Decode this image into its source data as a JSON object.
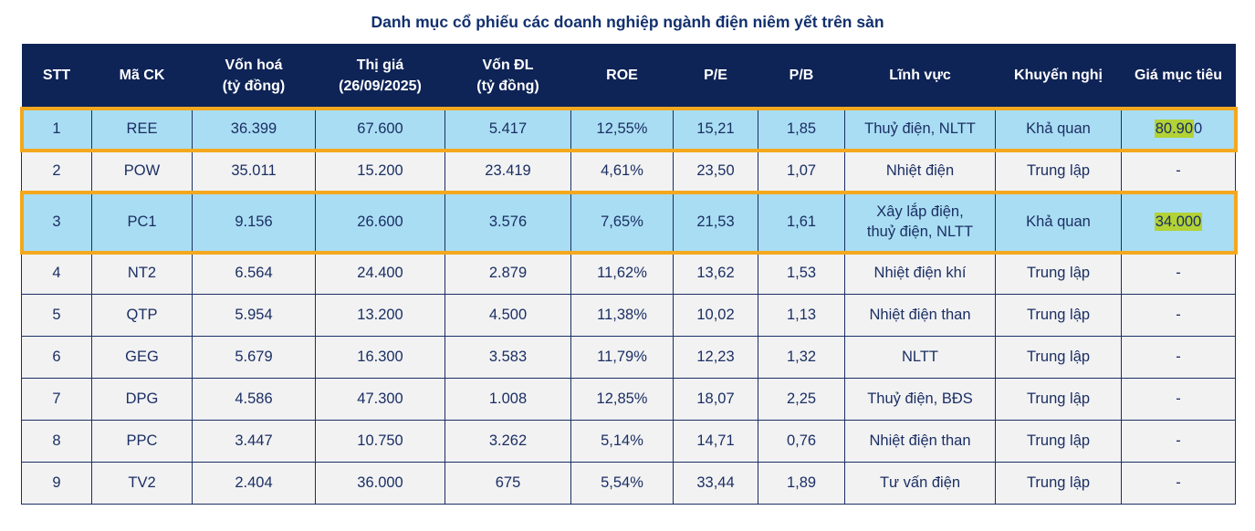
{
  "title": "Danh mục cổ phiếu các doanh nghiệp ngành điện niêm yết trên sàn",
  "colors": {
    "header_bg": "#0e2356",
    "title_text": "#12306e",
    "cell_text": "#1b2f63",
    "row_bg": "#f2f2f3",
    "highlight_row_bg": "#a9ddf3",
    "highlight_row_border": "#f3a81d",
    "target_price_mark_bg": "#b2d235"
  },
  "table": {
    "columns": [
      {
        "key": "stt",
        "label": "STT"
      },
      {
        "key": "ma_ck",
        "label": "Mã CK"
      },
      {
        "key": "von_hoa",
        "label": "Vốn hoá\n(tỷ đồng)"
      },
      {
        "key": "thi_gia",
        "label": "Thị giá\n(26/09/2025)"
      },
      {
        "key": "von_dl",
        "label": "Vốn ĐL\n(tỷ đồng)"
      },
      {
        "key": "roe",
        "label": "ROE"
      },
      {
        "key": "pe",
        "label": "P/E"
      },
      {
        "key": "pb",
        "label": "P/B"
      },
      {
        "key": "linh_vuc",
        "label": "Lĩnh vực"
      },
      {
        "key": "khuyen_nghi",
        "label": "Khuyến nghị"
      },
      {
        "key": "gia_muc_tieu",
        "label": "Giá mục tiêu"
      }
    ],
    "rows": [
      {
        "stt": "1",
        "ma_ck": "REE",
        "von_hoa": "36.399",
        "thi_gia": "67.600",
        "von_dl": "5.417",
        "roe": "12,55%",
        "pe": "15,21",
        "pb": "1,85",
        "linh_vuc": "Thuỷ điện, NLTT",
        "khuyen_nghi": "Khả quan",
        "gia_muc_tieu": [
          {
            "text": "80.90",
            "marked": true
          },
          {
            "text": "0",
            "marked": false
          }
        ],
        "highlighted": true,
        "tall": false
      },
      {
        "stt": "2",
        "ma_ck": "POW",
        "von_hoa": "35.011",
        "thi_gia": "15.200",
        "von_dl": "23.419",
        "roe": "4,61%",
        "pe": "23,50",
        "pb": "1,07",
        "linh_vuc": "Nhiệt điện",
        "khuyen_nghi": "Trung lập",
        "gia_muc_tieu": "-",
        "highlighted": false,
        "tall": false
      },
      {
        "stt": "3",
        "ma_ck": "PC1",
        "von_hoa": "9.156",
        "thi_gia": "26.600",
        "von_dl": "3.576",
        "roe": "7,65%",
        "pe": "21,53",
        "pb": "1,61",
        "linh_vuc": "Xây lắp điện,\nthuỷ điện, NLTT",
        "khuyen_nghi": "Khả quan",
        "gia_muc_tieu": [
          {
            "text": "34.000",
            "marked": true
          }
        ],
        "highlighted": true,
        "tall": true
      },
      {
        "stt": "4",
        "ma_ck": "NT2",
        "von_hoa": "6.564",
        "thi_gia": "24.400",
        "von_dl": "2.879",
        "roe": "11,62%",
        "pe": "13,62",
        "pb": "1,53",
        "linh_vuc": "Nhiệt điện khí",
        "khuyen_nghi": "Trung lập",
        "gia_muc_tieu": "-",
        "highlighted": false,
        "tall": false
      },
      {
        "stt": "5",
        "ma_ck": "QTP",
        "von_hoa": "5.954",
        "thi_gia": "13.200",
        "von_dl": "4.500",
        "roe": "11,38%",
        "pe": "10,02",
        "pb": "1,13",
        "linh_vuc": "Nhiệt điện than",
        "khuyen_nghi": "Trung lập",
        "gia_muc_tieu": "-",
        "highlighted": false,
        "tall": false
      },
      {
        "stt": "6",
        "ma_ck": "GEG",
        "von_hoa": "5.679",
        "thi_gia": "16.300",
        "von_dl": "3.583",
        "roe": "11,79%",
        "pe": "12,23",
        "pb": "1,32",
        "linh_vuc": "NLTT",
        "khuyen_nghi": "Trung lập",
        "gia_muc_tieu": "-",
        "highlighted": false,
        "tall": false
      },
      {
        "stt": "7",
        "ma_ck": "DPG",
        "von_hoa": "4.586",
        "thi_gia": "47.300",
        "von_dl": "1.008",
        "roe": "12,85%",
        "pe": "18,07",
        "pb": "2,25",
        "linh_vuc": "Thuỷ điện, BĐS",
        "khuyen_nghi": "Trung lập",
        "gia_muc_tieu": "-",
        "highlighted": false,
        "tall": false
      },
      {
        "stt": "8",
        "ma_ck": "PPC",
        "von_hoa": "3.447",
        "thi_gia": "10.750",
        "von_dl": "3.262",
        "roe": "5,14%",
        "pe": "14,71",
        "pb": "0,76",
        "linh_vuc": "Nhiệt điện than",
        "khuyen_nghi": "Trung lập",
        "gia_muc_tieu": "-",
        "highlighted": false,
        "tall": false
      },
      {
        "stt": "9",
        "ma_ck": "TV2",
        "von_hoa": "2.404",
        "thi_gia": "36.000",
        "von_dl": "675",
        "roe": "5,54%",
        "pe": "33,44",
        "pb": "1,89",
        "linh_vuc": "Tư vấn điện",
        "khuyen_nghi": "Trung lập",
        "gia_muc_tieu": "-",
        "highlighted": false,
        "tall": false
      }
    ]
  }
}
